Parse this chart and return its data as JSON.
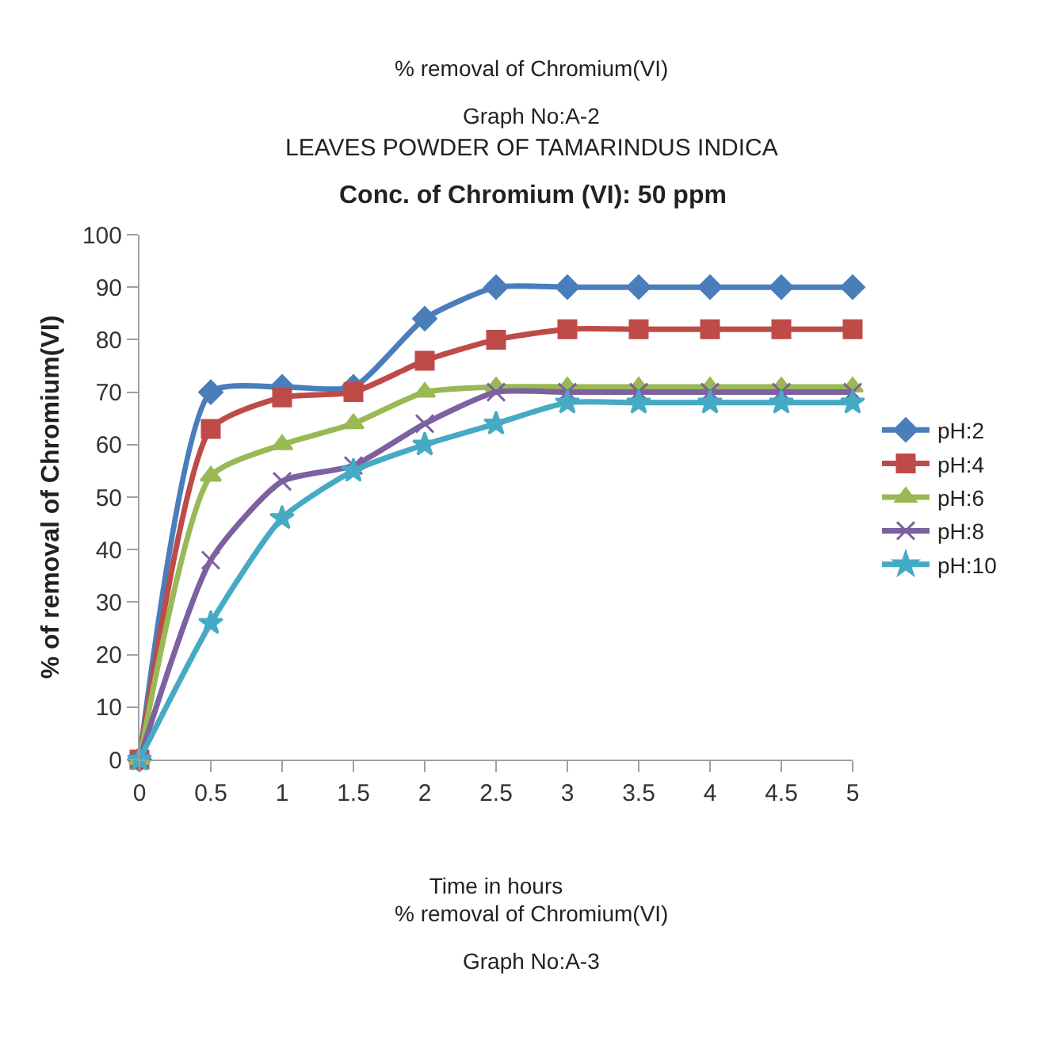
{
  "chart_data": {
    "type": "line",
    "title": "LEAVES POWDER OF TAMARINDUS INDICA",
    "subtitle": "Conc. of Chromium (VI): 50 ppm",
    "xlabel": "Time in hours",
    "ylabel": "% of removal of Chromium(VI)",
    "annotations": [
      "% removal of Chromium(VI)",
      "Graph No:A-2",
      "% removal of Chromium(VI)",
      "Graph No:A-3"
    ],
    "x": [
      0,
      0.5,
      1,
      1.5,
      2,
      2.5,
      3,
      3.5,
      4,
      4.5,
      5
    ],
    "series": [
      {
        "name": "pH:2",
        "color": "#4a7ebb",
        "marker": "diamond",
        "values": [
          0,
          70,
          71,
          71,
          84,
          90,
          90,
          90,
          90,
          90,
          90
        ]
      },
      {
        "name": "pH:4",
        "color": "#be4b48",
        "marker": "square",
        "values": [
          0,
          63,
          69,
          70,
          76,
          80,
          82,
          82,
          82,
          82,
          82
        ]
      },
      {
        "name": "pH:6",
        "color": "#98b954",
        "marker": "triangle",
        "values": [
          0,
          54,
          60,
          64,
          70,
          71,
          71,
          71,
          71,
          71,
          71
        ]
      },
      {
        "name": "pH:8",
        "color": "#7d60a0",
        "marker": "cross",
        "values": [
          0,
          38,
          53,
          56,
          64,
          70,
          70,
          70,
          70,
          70,
          70
        ]
      },
      {
        "name": "pH:10",
        "color": "#46aac5",
        "marker": "star",
        "values": [
          0,
          26,
          46,
          55,
          60,
          64,
          68,
          68,
          68,
          68,
          68
        ]
      }
    ],
    "xlim": [
      0,
      5
    ],
    "xticks": [
      0,
      0.5,
      1,
      1.5,
      2,
      2.5,
      3,
      3.5,
      4,
      4.5,
      5
    ],
    "ylim": [
      0,
      100
    ],
    "yticks": [
      0,
      10,
      20,
      30,
      40,
      50,
      60,
      70,
      80,
      90,
      100
    ],
    "legend": "right",
    "line_style": "solid"
  }
}
